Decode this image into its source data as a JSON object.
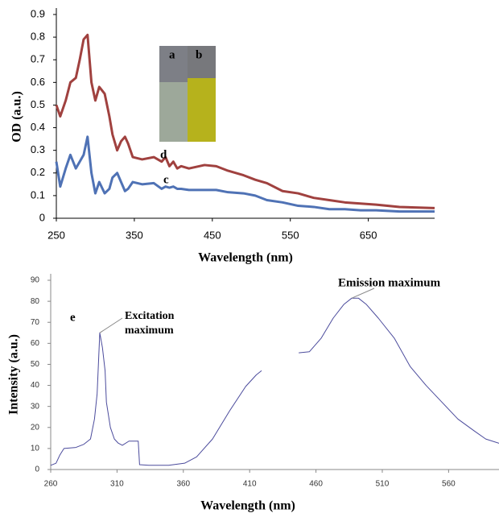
{
  "chart_data": [
    {
      "type": "line",
      "x_label": "Wavelength (nm)",
      "y_label": "OD (a.u.)",
      "x": [
        250,
        255,
        262,
        268,
        275,
        280,
        285,
        290,
        295,
        300,
        305,
        312,
        318,
        322,
        328,
        333,
        338,
        342,
        348,
        360,
        375,
        385,
        390,
        395,
        400,
        405,
        410,
        420,
        440,
        455,
        470,
        490,
        505,
        520,
        540,
        560,
        580,
        600,
        620,
        640,
        660,
        690,
        735
      ],
      "series": [
        {
          "name": "c",
          "color": "#4f72b5",
          "values": [
            0.25,
            0.14,
            0.22,
            0.28,
            0.22,
            0.25,
            0.28,
            0.36,
            0.2,
            0.11,
            0.16,
            0.11,
            0.13,
            0.18,
            0.2,
            0.16,
            0.12,
            0.13,
            0.16,
            0.15,
            0.155,
            0.13,
            0.14,
            0.135,
            0.14,
            0.13,
            0.13,
            0.125,
            0.125,
            0.125,
            0.115,
            0.11,
            0.1,
            0.08,
            0.07,
            0.055,
            0.05,
            0.04,
            0.04,
            0.035,
            0.035,
            0.03,
            0.03
          ]
        },
        {
          "name": "d",
          "color": "#a0413f",
          "values": [
            0.5,
            0.45,
            0.52,
            0.6,
            0.62,
            0.7,
            0.79,
            0.81,
            0.6,
            0.52,
            0.58,
            0.55,
            0.45,
            0.37,
            0.3,
            0.34,
            0.36,
            0.33,
            0.27,
            0.26,
            0.27,
            0.25,
            0.27,
            0.23,
            0.25,
            0.22,
            0.23,
            0.22,
            0.235,
            0.23,
            0.21,
            0.19,
            0.17,
            0.155,
            0.12,
            0.11,
            0.09,
            0.08,
            0.07,
            0.065,
            0.06,
            0.05,
            0.045
          ]
        }
      ],
      "annotations": [
        "a",
        "b"
      ],
      "xlim": [
        250,
        735
      ],
      "xticks": [
        250,
        350,
        450,
        550,
        650
      ],
      "ylim": [
        0,
        0.9
      ],
      "yticks": [
        0,
        0.1,
        0.2,
        0.3,
        0.4,
        0.5,
        0.6,
        0.7,
        0.8,
        0.9
      ],
      "grid": false
    },
    {
      "type": "line",
      "x_label": "Wavelength (nm)",
      "y_label": "Intensity (a.u.)",
      "x": [
        260,
        264,
        267,
        270,
        279,
        285,
        290,
        293,
        295,
        297,
        299,
        301,
        302,
        305,
        308,
        311,
        314,
        319,
        326,
        327,
        334,
        349,
        361,
        370,
        382,
        395,
        407,
        415,
        419,
        432,
        447,
        455,
        464,
        473,
        481,
        487,
        492,
        498,
        507,
        519,
        531,
        543,
        555,
        567,
        579,
        588,
        598
      ],
      "values": [
        2,
        3,
        7,
        10,
        10.5,
        12,
        14.5,
        24,
        36,
        65,
        58,
        47,
        32,
        20,
        14.5,
        12.5,
        11.5,
        13.5,
        13.5,
        2.3,
        2,
        2,
        3,
        6,
        14.5,
        28,
        39.5,
        45,
        47,
        null,
        55.5,
        56,
        62.5,
        72,
        78.5,
        81.5,
        81.5,
        78.5,
        72,
        62.5,
        49,
        40,
        32,
        24,
        18.5,
        14.5,
        12.5
      ],
      "color": "#4b4b9c",
      "annotations": [
        "e",
        "Excitation maximum",
        "Emission maximum"
      ],
      "xlim": [
        260,
        598
      ],
      "xticks": [
        260,
        310,
        360,
        410,
        460,
        510,
        560
      ],
      "ylim": [
        0,
        90
      ],
      "yticks": [
        0,
        10,
        20,
        30,
        40,
        50,
        60,
        70,
        80,
        90
      ],
      "grid": false
    }
  ]
}
